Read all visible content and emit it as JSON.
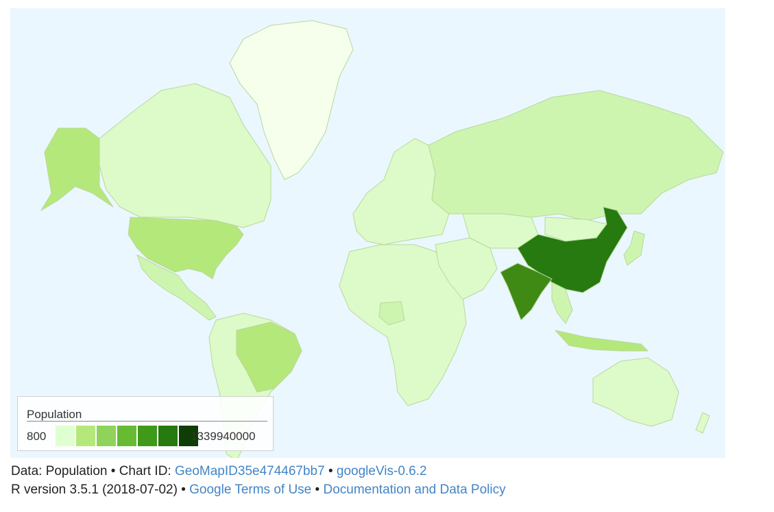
{
  "legend": {
    "title": "Population",
    "min_label": "800",
    "max_label": "1339940000",
    "colors": [
      "#e0ffd0",
      "#b5e87a",
      "#8fd35a",
      "#66bb33",
      "#3f9a1a",
      "#267a10",
      "#0e3d05"
    ]
  },
  "footer": {
    "line1_prefix": "Data: Population • Chart ID: ",
    "chart_id": "GeoMapID35e474467bb7",
    "sep1": " • ",
    "googlevis": "googleVis-0.6.2",
    "line2_prefix": "R version 3.5.1 (2018-07-02) • ",
    "terms": "Google Terms of Use",
    "sep2": " • ",
    "policy": "Documentation and Data Policy"
  },
  "map": {
    "ocean_color": "#eaf7fe",
    "regions": [
      {
        "name": "china",
        "population_tier": 6
      },
      {
        "name": "india",
        "population_tier": 5
      },
      {
        "name": "usa",
        "population_tier": 2
      },
      {
        "name": "brazil",
        "population_tier": 2
      },
      {
        "name": "indonesia",
        "population_tier": 2
      },
      {
        "name": "russia",
        "population_tier": 1
      },
      {
        "name": "other",
        "population_tier": 0
      }
    ]
  }
}
